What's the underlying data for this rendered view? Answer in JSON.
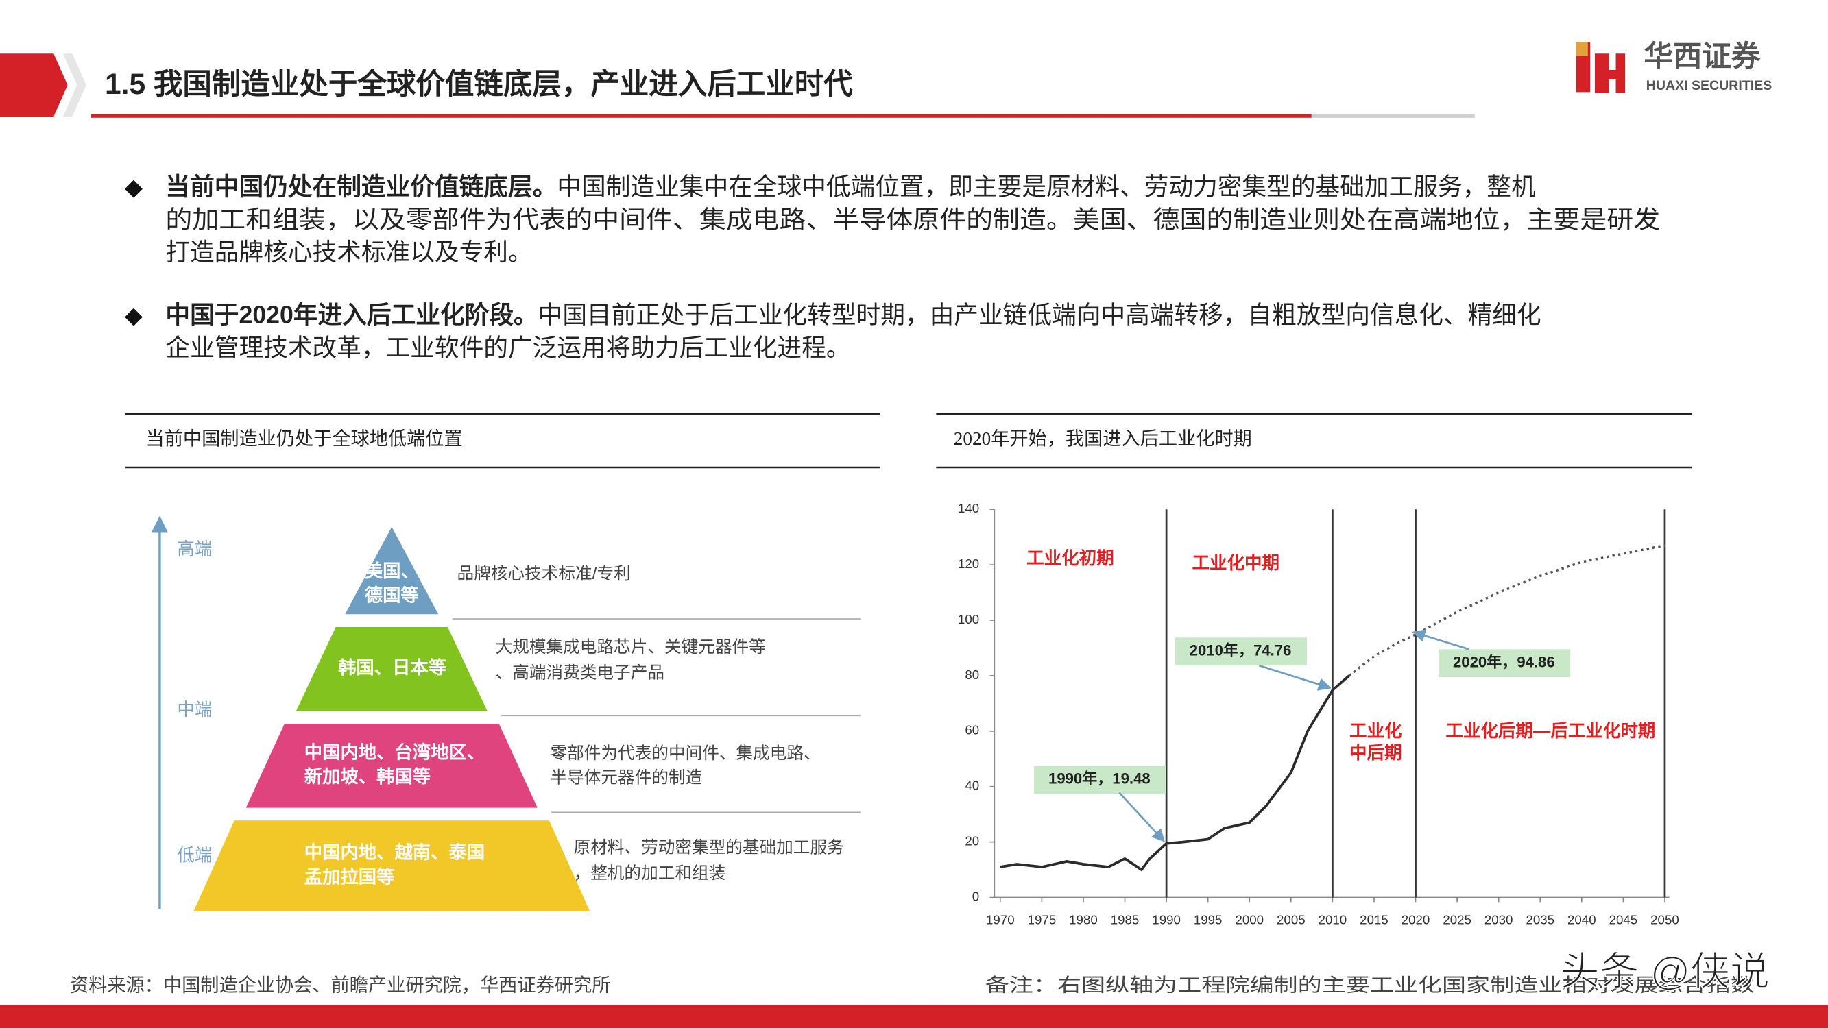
{
  "header": {
    "title": "1.5 我国制造业处于全球价值链底层，产业进入后工业时代",
    "logo_cn": "华西证券",
    "logo_en": "HUAXI SECURITIES"
  },
  "bullets": [
    {
      "lead": "当前中国仍处在制造业价值链底层。",
      "lines": [
        "中国制造业集中在全球中低端位置，即主要是原材料、劳动力密集型的基础加工服务，整机",
        "的加工和组装，以及零部件为代表的中间件、集成电路、半导体原件的制造。美国、德国的制造业则处在高端地位，主要是研发",
        "打造品牌核心技术标准以及专利。"
      ]
    },
    {
      "lead": "中国于2020年进入后工业化阶段。",
      "lines": [
        "中国目前正处于后工业化转型时期，由产业链低端向中高端转移，自粗放型向信息化、精细化",
        "企业管理技术改革，工业软件的广泛运用将助力后工业化进程。"
      ]
    }
  ],
  "left_panel": {
    "caption": "当前中国制造业仍处于全球地低端位置",
    "levels": [
      "高端",
      "中端",
      "低端"
    ],
    "tiers": [
      {
        "label": [
          "美国、",
          "德国等"
        ],
        "desc": [
          "品牌核心技术标准/专利"
        ],
        "color": "#6f9ec3"
      },
      {
        "label": [
          "韩国、日本等"
        ],
        "desc": [
          "大规模集成电路芯片、关键元器件等",
          "、高端消费类电子产品"
        ],
        "color": "#82c320"
      },
      {
        "label": [
          "中国内地、台湾地区、",
          "新加坡、韩国等"
        ],
        "desc": [
          "零部件为代表的中间件、集成电路、",
          "半导体元器件的制造"
        ],
        "color": "#e0447f"
      },
      {
        "label": [
          "中国内地、越南、泰国",
          "孟加拉国等"
        ],
        "desc": [
          "原材料、劳动密集型的基础加工服务",
          "，整机的加工和组装"
        ],
        "color": "#f1c828"
      }
    ]
  },
  "right_panel": {
    "caption": "2020年开始，我国进入后工业化时期"
  },
  "chart_data": {
    "type": "line",
    "x": [
      1970,
      1972,
      1975,
      1978,
      1980,
      1983,
      1985,
      1987,
      1988,
      1990,
      1992,
      1995,
      1997,
      2000,
      2002,
      2005,
      2007,
      2010,
      2012,
      2015,
      2018,
      2020,
      2025,
      2030,
      2035,
      2040,
      2045,
      2050
    ],
    "series": [
      {
        "color": "#2b2b2b",
        "style": "solid",
        "values": [
          11,
          12,
          11,
          13,
          12,
          11,
          14,
          10,
          14,
          19.48,
          20,
          21,
          25,
          27,
          33,
          45,
          60,
          74.76,
          80,
          null,
          null,
          null,
          null,
          null,
          null,
          null,
          null,
          null
        ]
      },
      {
        "color": "#555555",
        "style": "dotted",
        "values": [
          null,
          null,
          null,
          null,
          null,
          null,
          null,
          null,
          null,
          null,
          null,
          null,
          null,
          null,
          null,
          null,
          null,
          null,
          80,
          87,
          92,
          94.86,
          103,
          110,
          116,
          121,
          124,
          127
        ]
      }
    ],
    "xlim": [
      1970,
      2050
    ],
    "ylim": [
      0,
      140
    ],
    "xticks": [
      1970,
      1975,
      1980,
      1985,
      1990,
      1995,
      2000,
      2005,
      2010,
      2015,
      2020,
      2025,
      2030,
      2035,
      2040,
      2045,
      2050
    ],
    "yticks": [
      0,
      20,
      40,
      60,
      80,
      100,
      120,
      140
    ],
    "vlines": [
      1990,
      2010,
      2020,
      2050
    ],
    "phases": [
      [
        "工业化初期"
      ],
      [
        "工业化中期"
      ],
      [
        "工业化",
        "中后期"
      ],
      [
        "工业化后期—后工业化时期"
      ]
    ],
    "annotations": [
      "1990年，19.48",
      "2010年，74.76",
      "2020年，94.86"
    ]
  },
  "footer": {
    "source": "资料来源：中国制造企业协会、前瞻产业研究院，华西证券研究所",
    "note": "备注：右图纵轴为工程院编制的主要工业化国家制造业相对发展综合指数",
    "watermark": "头条 @侠说"
  }
}
